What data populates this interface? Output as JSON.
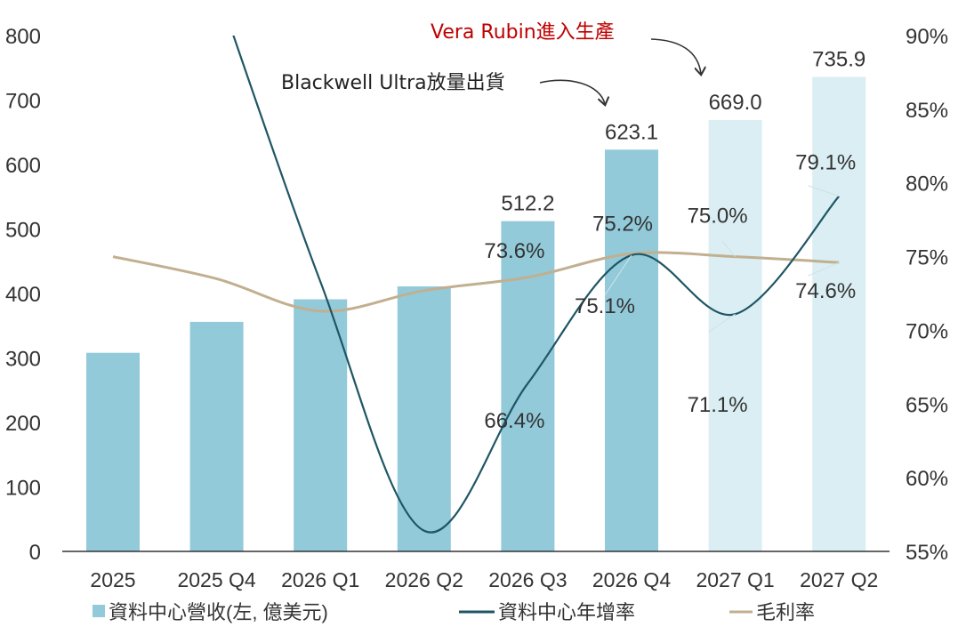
{
  "chart_data": {
    "type": "bar+line",
    "categories": [
      "2025",
      "2025 Q4",
      "2026 Q1",
      "2026 Q2",
      "2026 Q3",
      "2026 Q4",
      "2027 Q1",
      "2027 Q2"
    ],
    "series": [
      {
        "name": "資料中心營收(左, 億美元)",
        "type": "bar",
        "axis": "left",
        "color": "#92CAD9",
        "forecast_color": "#DAEEF3",
        "forecast_from_index": 6,
        "values": [
          308,
          356,
          391,
          411,
          512.2,
          623.1,
          669.0,
          735.9
        ],
        "labels": [
          null,
          null,
          null,
          null,
          "512.2",
          "623.1",
          "669.0",
          "735.9"
        ]
      },
      {
        "name": "資料中心年增率",
        "type": "line",
        "axis": "right",
        "color": "#1F5665",
        "values": [
          null,
          93.3,
          73.3,
          56.4,
          66.4,
          75.1,
          71.1,
          79.1
        ],
        "labels": [
          null,
          null,
          null,
          null,
          "66.4%",
          "75.1%",
          "71.1%",
          "79.1%"
        ]
      },
      {
        "name": "毛利率",
        "type": "line",
        "axis": "right",
        "color": "#C2AF8F",
        "values": [
          75.0,
          73.5,
          71.3,
          72.7,
          73.6,
          75.2,
          75.0,
          74.6
        ],
        "labels": [
          null,
          null,
          null,
          null,
          "73.6%",
          "75.2%",
          "75.0%",
          "74.6%"
        ]
      }
    ],
    "left_axis": {
      "min": 0,
      "max": 800,
      "ticks": [
        "0",
        "100",
        "200",
        "300",
        "400",
        "500",
        "600",
        "700",
        "800"
      ]
    },
    "right_axis": {
      "min": 55,
      "max": 90,
      "ticks": [
        "55%",
        "60%",
        "65%",
        "70%",
        "75%",
        "80%",
        "85%",
        "90%"
      ]
    },
    "annotations": [
      {
        "text": "Blackwell Ultra放量出貨",
        "target_category": "2026 Q4",
        "color": "#222222"
      },
      {
        "text": "Vera Rubin進入生產",
        "target_category": "2027 Q1",
        "color": "#C00000"
      }
    ],
    "legend_position": "bottom",
    "grid": false
  }
}
